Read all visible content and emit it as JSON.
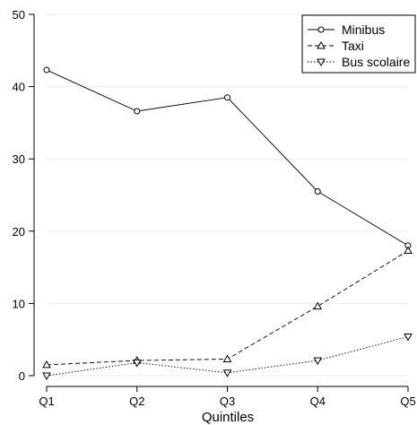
{
  "chart_data": {
    "type": "line",
    "title": "",
    "xlabel": "Quintiles",
    "ylabel": "",
    "categories": [
      "Q1",
      "Q2",
      "Q3",
      "Q4",
      "Q5"
    ],
    "ylim": [
      0,
      50
    ],
    "yticks": [
      "0",
      "10",
      "20",
      "30",
      "40",
      "50"
    ],
    "grid": "horizontal",
    "legend_position": "top-right",
    "series": [
      {
        "name": "Minibus",
        "values": [
          42.3,
          36.6,
          38.5,
          25.5,
          18.0
        ],
        "marker": "circle",
        "line_style": "solid",
        "color": "#000000"
      },
      {
        "name": "Taxi",
        "values": [
          1.5,
          2.1,
          2.3,
          9.6,
          17.3
        ],
        "marker": "triangle-up",
        "line_style": "dashed",
        "color": "#000000"
      },
      {
        "name": "Bus scolaire",
        "values": [
          0.0,
          1.8,
          0.4,
          2.1,
          5.4
        ],
        "marker": "triangle-down",
        "line_style": "dotted",
        "color": "#000000"
      }
    ]
  }
}
